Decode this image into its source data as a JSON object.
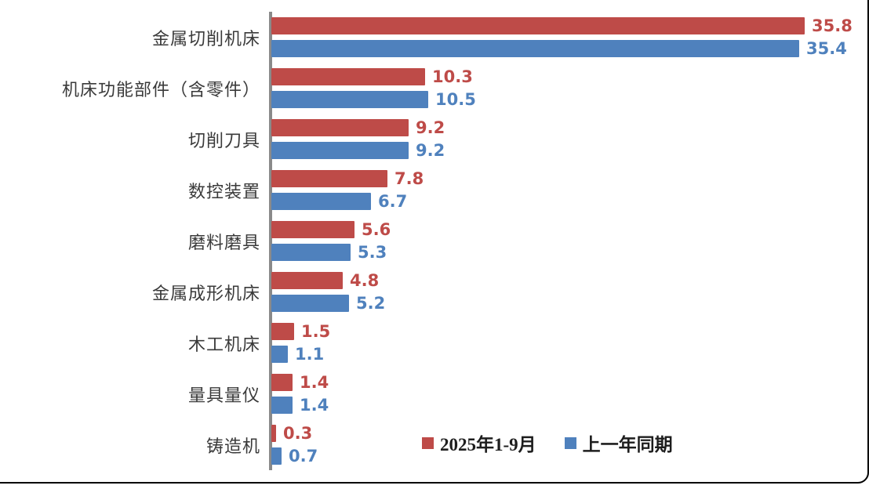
{
  "chart_data": {
    "type": "bar",
    "orientation": "horizontal",
    "title": "",
    "xlabel": "",
    "ylabel": "",
    "xlim": [
      0,
      36
    ],
    "grid": false,
    "value_labels": true,
    "legend_position": "bottom-center-overlay",
    "axis_color": "#8a8a8a",
    "categories": [
      "金属切削机床",
      "机床功能部件（含零件）",
      "切削刀具",
      "数控装置",
      "磨料磨具",
      "金属成形机床",
      "木工机床",
      "量具量仪",
      "铸造机"
    ],
    "series": [
      {
        "name": "2025年1-9月",
        "color": "#be4b48",
        "values": [
          35.8,
          10.3,
          9.2,
          7.8,
          5.6,
          4.8,
          1.5,
          1.4,
          0.3
        ]
      },
      {
        "name": "上一年同期",
        "color": "#4f81bd",
        "values": [
          35.4,
          10.5,
          9.2,
          6.7,
          5.3,
          5.2,
          1.1,
          1.4,
          0.7
        ]
      }
    ]
  }
}
